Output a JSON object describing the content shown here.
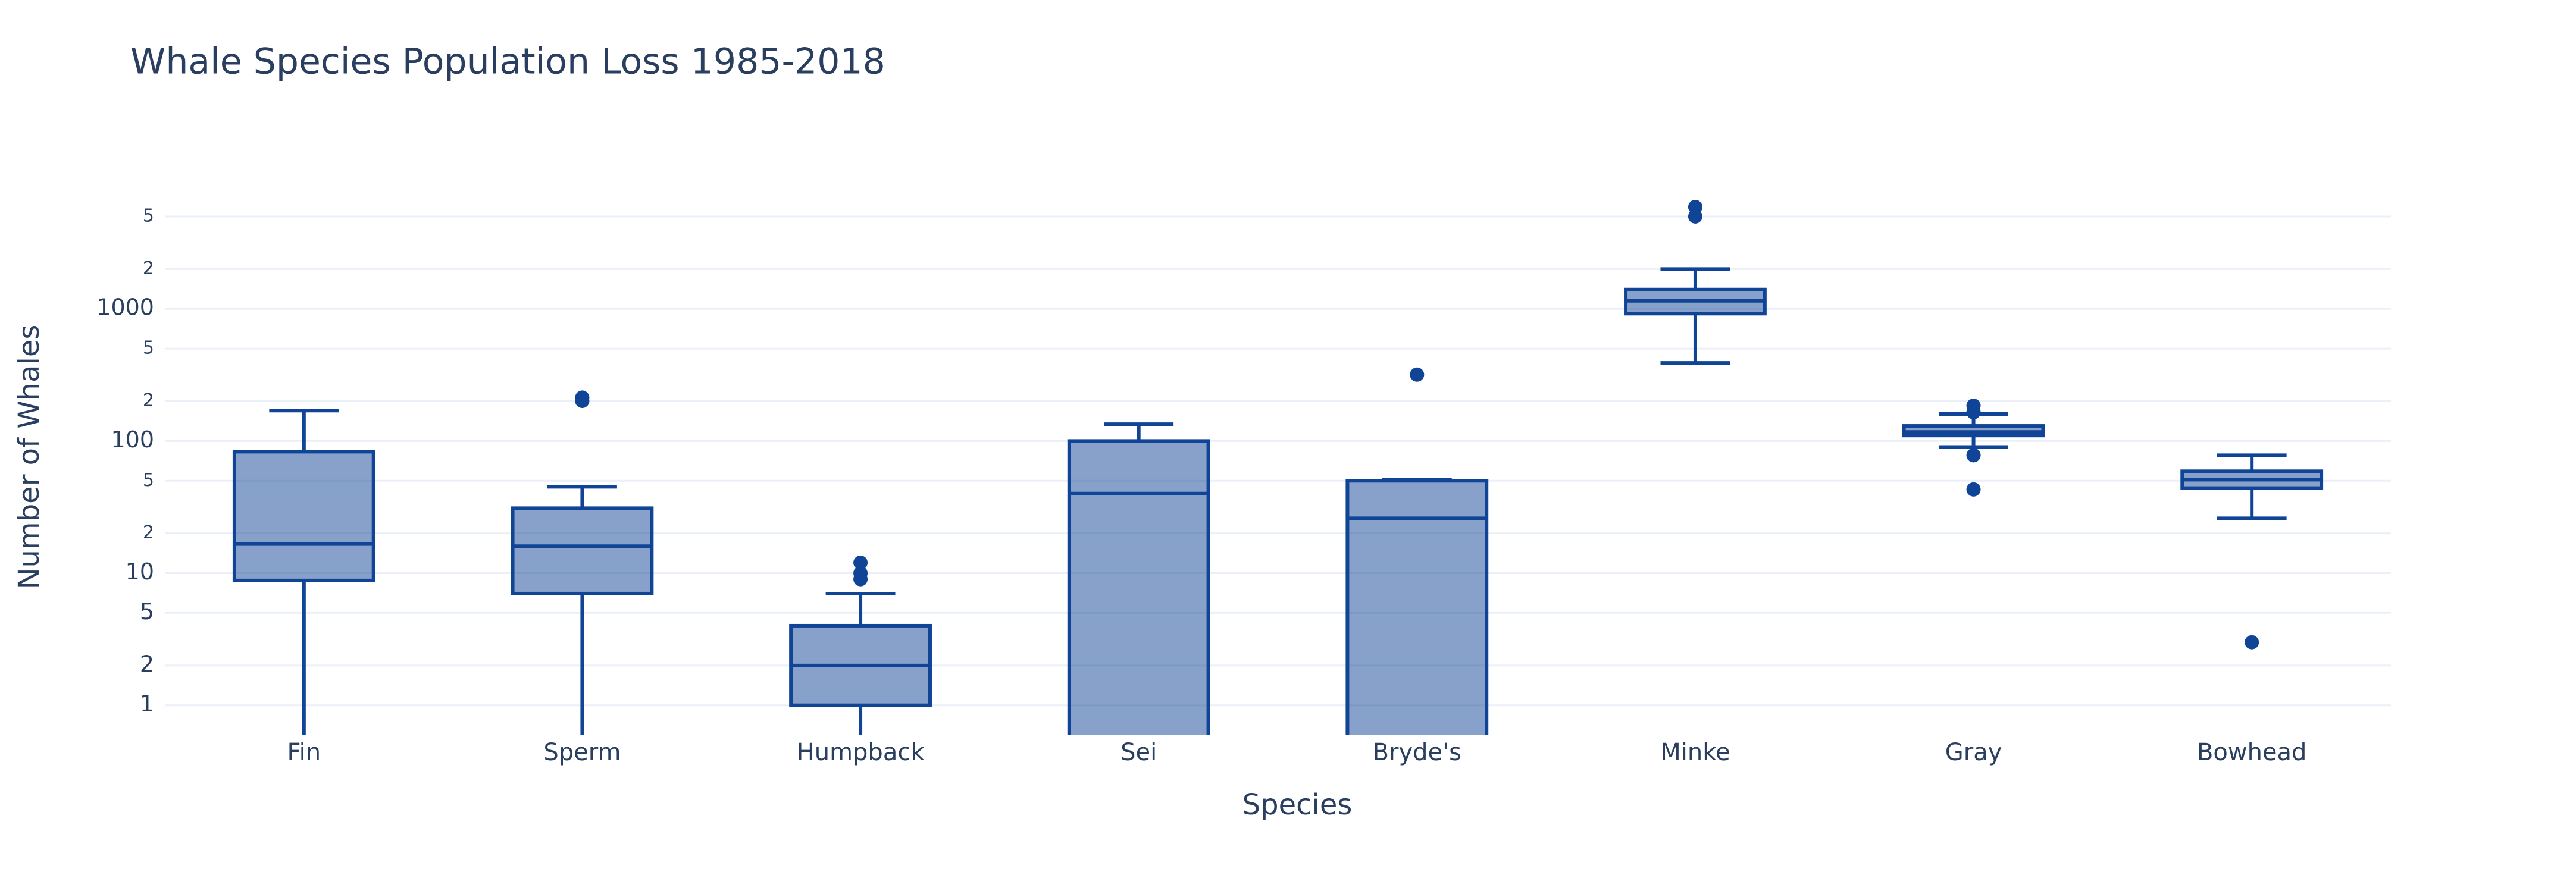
{
  "chart_data": {
    "type": "box",
    "title": "Whale Species Population Loss 1985-2018",
    "x_label": "Species",
    "y_label": "Number of Whales",
    "log_y": true,
    "grid": true,
    "color": "#0f4496",
    "categories": [
      "Fin",
      "Sperm",
      "Humpback",
      "Sei",
      "Bryde's",
      "Minke",
      "Gray",
      "Bowhead"
    ],
    "lower": [
      0.5,
      0.5,
      0.5,
      0.5,
      0.5,
      390,
      90,
      26
    ],
    "q1": [
      8.8,
      7,
      1,
      0.5,
      0.5,
      920,
      110,
      44
    ],
    "median": [
      16.6,
      16,
      2,
      40,
      26,
      1150,
      117,
      51
    ],
    "q3": [
      83,
      31,
      4,
      100,
      50,
      1400,
      130,
      59
    ],
    "upper": [
      170,
      45,
      7,
      134,
      51,
      2000,
      160,
      78
    ],
    "outliers": [
      [],
      [
        213,
        201
      ],
      [
        12,
        10,
        9
      ],
      [],
      [
        318
      ],
      [
        5900,
        5000
      ],
      [
        185,
        165,
        78,
        43
      ],
      [
        3
      ]
    ],
    "ylim": [
      0.6,
      9700
    ],
    "yticks": [
      1,
      2,
      5,
      10,
      {
        "value": 20,
        "label": "2"
      },
      {
        "value": 50,
        "label": "5"
      },
      100,
      {
        "value": 200,
        "label": "2"
      },
      {
        "value": 500,
        "label": "5"
      },
      1000,
      {
        "value": 2000,
        "label": "2"
      },
      {
        "value": 5000,
        "label": "5"
      }
    ]
  }
}
